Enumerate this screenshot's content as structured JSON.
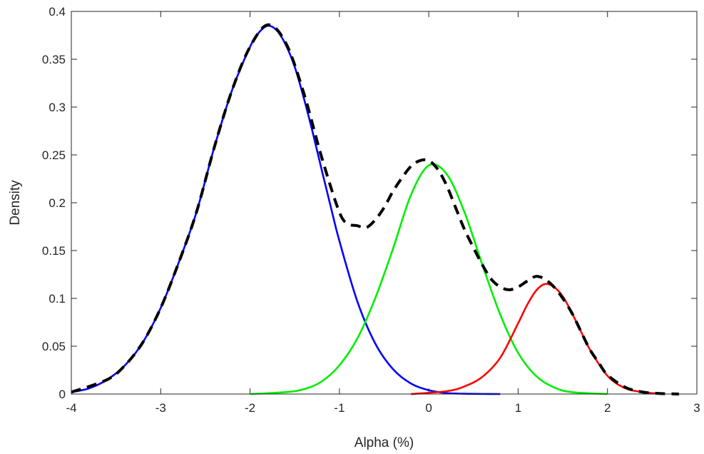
{
  "chart_data": {
    "type": "line",
    "title": "",
    "xlabel": "Alpha (%)",
    "ylabel": "Density",
    "xlim": [
      -4,
      3
    ],
    "ylim": [
      0,
      0.4
    ],
    "x_ticks": [
      "-4",
      "-3",
      "-2",
      "-1",
      "0",
      "1",
      "2",
      "3"
    ],
    "y_ticks": [
      "0",
      "0.05",
      "0.1",
      "0.15",
      "0.2",
      "0.25",
      "0.3",
      "0.35",
      "0.4"
    ],
    "grid": false,
    "legend": "none",
    "series": [
      {
        "color": "#0000ff",
        "style": "solid",
        "x": [
          -4.0,
          -3.8,
          -3.6,
          -3.4,
          -3.2,
          -3.0,
          -2.8,
          -2.6,
          -2.4,
          -2.2,
          -2.0,
          -1.9,
          -1.8,
          -1.7,
          -1.6,
          -1.5,
          -1.4,
          -1.3,
          -1.2,
          -1.1,
          -1.0,
          -0.8,
          -0.6,
          -0.4,
          -0.2,
          0.0,
          0.2,
          0.4,
          0.6,
          0.8
        ],
        "values": [
          0.002,
          0.006,
          0.015,
          0.03,
          0.054,
          0.09,
          0.137,
          0.19,
          0.258,
          0.318,
          0.363,
          0.378,
          0.385,
          0.38,
          0.365,
          0.342,
          0.31,
          0.274,
          0.235,
          0.197,
          0.16,
          0.097,
          0.053,
          0.026,
          0.011,
          0.004,
          0.001,
          0.0003,
          0.0001,
          0.0
        ]
      },
      {
        "color": "#00ee00",
        "style": "solid",
        "x": [
          -2.0,
          -1.6,
          -1.4,
          -1.2,
          -1.0,
          -0.8,
          -0.6,
          -0.4,
          -0.2,
          0.0,
          0.2,
          0.4,
          0.6,
          0.8,
          1.0,
          1.2,
          1.4,
          1.6,
          2.0
        ],
        "values": [
          0.0,
          0.002,
          0.005,
          0.013,
          0.03,
          0.058,
          0.1,
          0.152,
          0.208,
          0.239,
          0.23,
          0.19,
          0.135,
          0.083,
          0.043,
          0.019,
          0.007,
          0.002,
          0.0
        ]
      },
      {
        "color": "#ff0000",
        "style": "solid",
        "x": [
          -0.2,
          0.2,
          0.4,
          0.6,
          0.8,
          1.0,
          1.1,
          1.2,
          1.3,
          1.4,
          1.5,
          1.6,
          1.7,
          1.8,
          2.0,
          2.2,
          2.4,
          2.6
        ],
        "values": [
          0.0,
          0.003,
          0.008,
          0.018,
          0.038,
          0.074,
          0.093,
          0.108,
          0.115,
          0.112,
          0.102,
          0.085,
          0.066,
          0.047,
          0.019,
          0.006,
          0.002,
          0.0
        ]
      },
      {
        "color": "#000000",
        "style": "dashed",
        "x": [
          -4.0,
          -3.6,
          -3.4,
          -3.2,
          -3.0,
          -2.8,
          -2.6,
          -2.4,
          -2.2,
          -2.0,
          -1.8,
          -1.6,
          -1.4,
          -1.2,
          -1.0,
          -0.9,
          -0.8,
          -0.7,
          -0.6,
          -0.5,
          -0.4,
          -0.3,
          -0.2,
          -0.1,
          0.0,
          0.1,
          0.2,
          0.3,
          0.4,
          0.5,
          0.6,
          0.7,
          0.8,
          0.9,
          1.0,
          1.1,
          1.2,
          1.3,
          1.4,
          1.5,
          1.6,
          1.7,
          1.8,
          1.9,
          2.0,
          2.2,
          2.4,
          2.6,
          2.8
        ],
        "values": [
          0.002,
          0.015,
          0.03,
          0.054,
          0.09,
          0.137,
          0.19,
          0.258,
          0.318,
          0.363,
          0.386,
          0.367,
          0.315,
          0.248,
          0.19,
          0.178,
          0.176,
          0.174,
          0.182,
          0.195,
          0.212,
          0.226,
          0.238,
          0.244,
          0.244,
          0.235,
          0.218,
          0.195,
          0.172,
          0.153,
          0.135,
          0.12,
          0.112,
          0.109,
          0.112,
          0.118,
          0.123,
          0.12,
          0.112,
          0.1,
          0.085,
          0.066,
          0.047,
          0.033,
          0.02,
          0.007,
          0.002,
          0.0005,
          0.0
        ]
      }
    ]
  }
}
